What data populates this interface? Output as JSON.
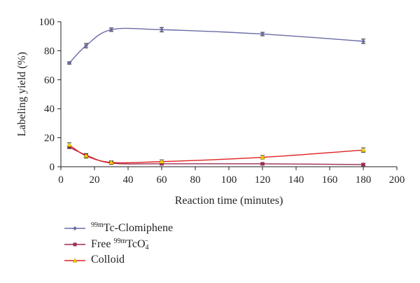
{
  "chart_data": {
    "type": "line",
    "title": "",
    "xlabel": "Reaction time (minutes)",
    "ylabel": "Labeling yield (%)",
    "xlim": [
      0,
      200
    ],
    "ylim": [
      0,
      100
    ],
    "xticks": [
      "0",
      "20",
      "40",
      "60",
      "80",
      "100",
      "120",
      "140",
      "160",
      "180",
      "200"
    ],
    "yticks": [
      "0",
      "20",
      "40",
      "60",
      "80",
      "100"
    ],
    "grid": false,
    "legend_position": "bottom-left",
    "series": [
      {
        "name_parts": {
          "sup": "99m",
          "text": "Tc-Clomiphene"
        },
        "color": "#6b6ba8",
        "marker": "diamond",
        "x": [
          5,
          15,
          30,
          60,
          120,
          180
        ],
        "y": [
          71.5,
          83.5,
          94.5,
          94.5,
          91.5,
          86.5
        ],
        "err": [
          0.8,
          1.5,
          1.2,
          1.5,
          1.2,
          1.5
        ]
      },
      {
        "name_parts": {
          "pre": "Free ",
          "sup": "99m",
          "text": "TcO",
          "sub": "4",
          "post": "−"
        },
        "color": "#9b2c54",
        "marker": "square",
        "x": [
          5,
          15,
          30,
          60,
          120,
          180
        ],
        "y": [
          13.5,
          8,
          2.5,
          2,
          2,
          1.5
        ],
        "err": [
          1,
          1,
          0.8,
          0.8,
          0.8,
          0.8
        ]
      },
      {
        "name_parts": {
          "text": "Colloid"
        },
        "color": "#e02020",
        "marker": "triangle",
        "marker_color": "#f2d000",
        "x": [
          5,
          15,
          30,
          60,
          120,
          180
        ],
        "y": [
          15,
          7.5,
          3,
          3.5,
          6.5,
          11.5
        ],
        "err": [
          1.5,
          1.5,
          1,
          1.2,
          1.2,
          1.5
        ]
      }
    ]
  }
}
